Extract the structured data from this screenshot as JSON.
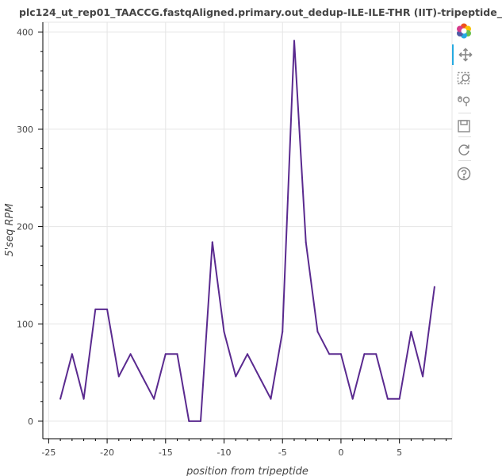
{
  "chart_data": {
    "type": "line",
    "title": "plc124_ut_rep01_TAACCG.fastqAligned.primary.out_dedup-ILE-ILE-THR (IIT)-tripeptide_",
    "xlabel": "position from tripeptide",
    "ylabel": "5'seq RPM",
    "xlim": [
      -25.5,
      9.5
    ],
    "ylim": [
      -18,
      410
    ],
    "x_ticks": [
      -25,
      -20,
      -15,
      -10,
      -5,
      0,
      5
    ],
    "y_ticks": [
      0,
      100,
      200,
      300,
      400
    ],
    "grid": true,
    "line_color": "#5a2a8f",
    "series": [
      {
        "x": [
          -24,
          -23,
          -22,
          -21,
          -20,
          -19,
          -18,
          -17,
          -16,
          -15,
          -14,
          -13,
          -12,
          -11,
          -10,
          -9,
          -8,
          -7,
          -6,
          -5,
          -4,
          -3,
          -2,
          -1,
          0,
          1,
          2,
          3,
          4,
          5,
          6,
          7,
          8
        ],
        "values": [
          23,
          69,
          23,
          115,
          115,
          46,
          69,
          46,
          23,
          69,
          69,
          0,
          0,
          184,
          92,
          46,
          69,
          46,
          23,
          92,
          391,
          184,
          92,
          69,
          69,
          23,
          69,
          69,
          23,
          23,
          92,
          46,
          138
        ]
      }
    ]
  },
  "toolbar": {
    "icons": [
      "bokeh-logo-icon",
      "pan-icon",
      "box-zoom-icon",
      "wheel-zoom-icon",
      "save-icon",
      "reset-icon",
      "help-icon"
    ]
  }
}
